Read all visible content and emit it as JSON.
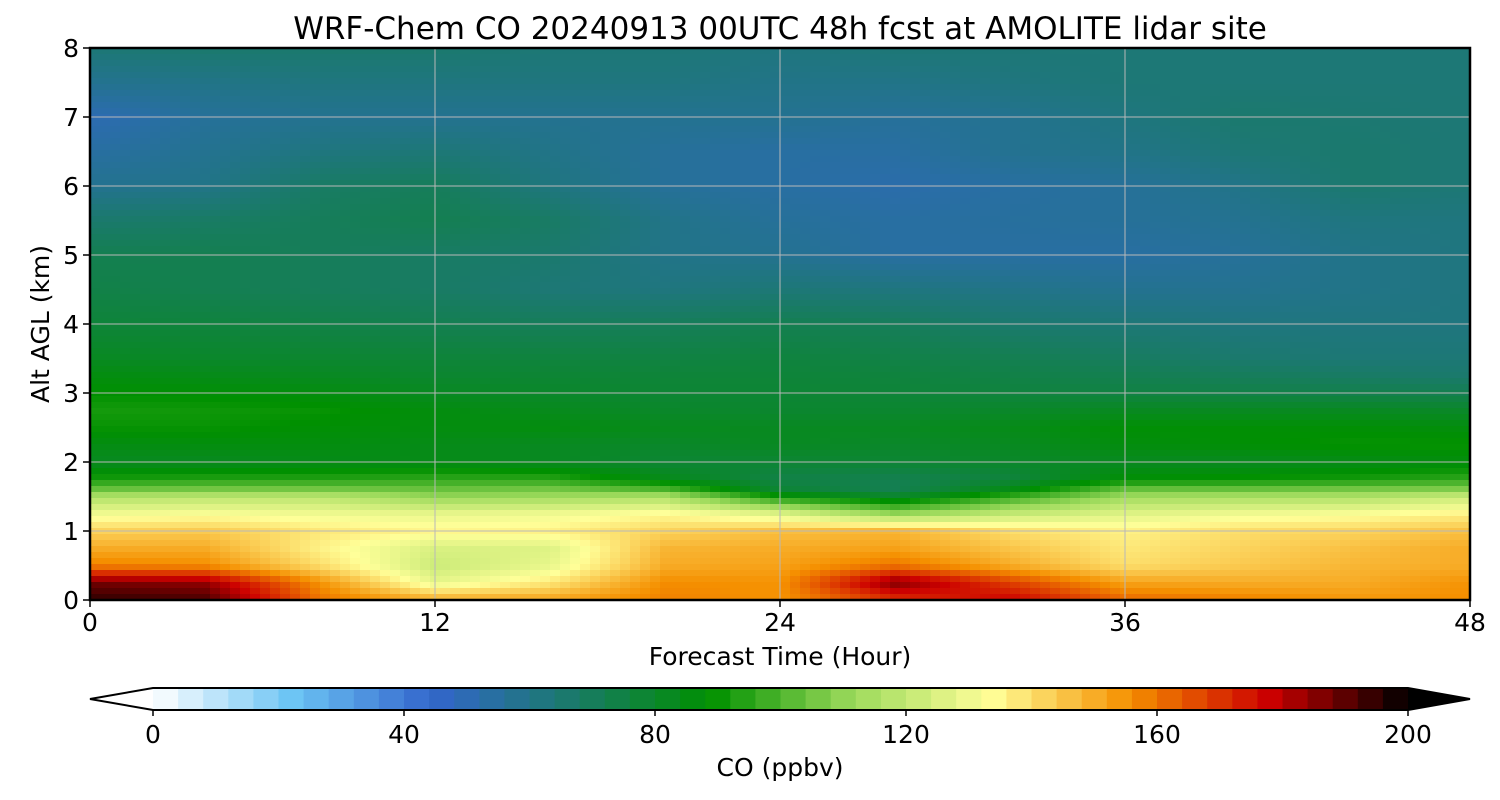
{
  "chart_data": {
    "type": "heatmap",
    "title": "WRF-Chem CO  20240913 00UTC 48h fcst at AMOLITE lidar site",
    "xlabel": "Forecast Time (Hour)",
    "ylabel": "Alt AGL (km)",
    "xlim": [
      0,
      48
    ],
    "ylim": [
      0,
      8
    ],
    "x_ticks": [
      "0",
      "12",
      "24",
      "36",
      "48"
    ],
    "y_ticks": [
      "0",
      "1",
      "2",
      "3",
      "4",
      "5",
      "6",
      "7",
      "8"
    ],
    "grid": true,
    "colorbar": {
      "label": "CO  (ppbv)",
      "range": [
        0,
        200
      ],
      "ticks": [
        "0",
        "40",
        "80",
        "120",
        "160",
        "200"
      ],
      "extend": "both",
      "orientation": "horizontal",
      "placement": "bottom",
      "colors": [
        "#ffffff",
        "#6cc4f4",
        "#3366cc",
        "#1a7a6a",
        "#009000",
        "#9ad95a",
        "#ffff99",
        "#f59000",
        "#cc0000",
        "#000000"
      ]
    },
    "field": {
      "x": [
        0,
        4,
        8,
        12,
        16,
        20,
        24,
        28,
        32,
        36,
        40,
        44,
        48
      ],
      "y": [
        0,
        0.25,
        0.5,
        0.75,
        1,
        1.25,
        1.5,
        1.6,
        1.75,
        2,
        2.25,
        2.5,
        2.75,
        3,
        3.25,
        3.5,
        4,
        4.5,
        5,
        5.5,
        6,
        6.5,
        7,
        7.5,
        8
      ],
      "values": [
        [
          195,
          192,
          160,
          150,
          152,
          158,
          155,
          170,
          178,
          162,
          158,
          154,
          156
        ],
        [
          188,
          184,
          155,
          128,
          138,
          156,
          155,
          186,
          168,
          152,
          150,
          150,
          155
        ],
        [
          158,
          156,
          140,
          122,
          128,
          150,
          152,
          160,
          150,
          140,
          144,
          148,
          150
        ],
        [
          150,
          150,
          136,
          125,
          126,
          148,
          150,
          152,
          145,
          138,
          142,
          146,
          150
        ],
        [
          142,
          144,
          138,
          135,
          136,
          142,
          146,
          148,
          140,
          136,
          140,
          142,
          146
        ],
        [
          130,
          132,
          130,
          128,
          130,
          134,
          126,
          110,
          120,
          126,
          130,
          132,
          136
        ],
        [
          115,
          118,
          118,
          110,
          112,
          115,
          90,
          80,
          96,
          112,
          114,
          115,
          122
        ],
        [
          104,
          106,
          106,
          104,
          106,
          100,
          78,
          72,
          85,
          104,
          104,
          106,
          108
        ],
        [
          92,
          94,
          94,
          96,
          95,
          84,
          74,
          72,
          76,
          88,
          90,
          92,
          96
        ],
        [
          82,
          82,
          84,
          84,
          82,
          78,
          78,
          78,
          80,
          82,
          82,
          84,
          86
        ],
        [
          85,
          86,
          86,
          84,
          82,
          80,
          82,
          80,
          82,
          86,
          88,
          90,
          90
        ],
        [
          90,
          90,
          88,
          86,
          86,
          83,
          82,
          82,
          84,
          88,
          88,
          88,
          86
        ],
        [
          92,
          91,
          90,
          86,
          83,
          80,
          79,
          79,
          80,
          82,
          82,
          82,
          80
        ],
        [
          89,
          88,
          86,
          82,
          80,
          78,
          78,
          77,
          76,
          75,
          74,
          73,
          72
        ],
        [
          86,
          84,
          82,
          79,
          78,
          77,
          77,
          76,
          74,
          72,
          70,
          68,
          66
        ],
        [
          82,
          80,
          79,
          77,
          76,
          75,
          76,
          74,
          72,
          69,
          66,
          64,
          64
        ],
        [
          77,
          76,
          74,
          72,
          70,
          70,
          72,
          70,
          66,
          64,
          62,
          62,
          62
        ],
        [
          74,
          72,
          70,
          68,
          64,
          62,
          64,
          62,
          60,
          58,
          58,
          60,
          62
        ],
        [
          72,
          72,
          70,
          68,
          66,
          60,
          58,
          54,
          54,
          54,
          56,
          60,
          62
        ],
        [
          66,
          68,
          70,
          72,
          68,
          60,
          56,
          54,
          55,
          56,
          58,
          62,
          62
        ],
        [
          58,
          60,
          68,
          70,
          62,
          56,
          54,
          52,
          54,
          56,
          60,
          66,
          64
        ],
        [
          54,
          58,
          62,
          64,
          60,
          56,
          54,
          54,
          58,
          60,
          64,
          66,
          64
        ],
        [
          50,
          56,
          58,
          58,
          58,
          58,
          58,
          56,
          58,
          62,
          66,
          65,
          64
        ],
        [
          58,
          60,
          62,
          62,
          62,
          62,
          60,
          60,
          62,
          64,
          64,
          64,
          64
        ],
        [
          64,
          66,
          66,
          66,
          64,
          64,
          62,
          64,
          64,
          64,
          64,
          64,
          64
        ]
      ]
    }
  }
}
